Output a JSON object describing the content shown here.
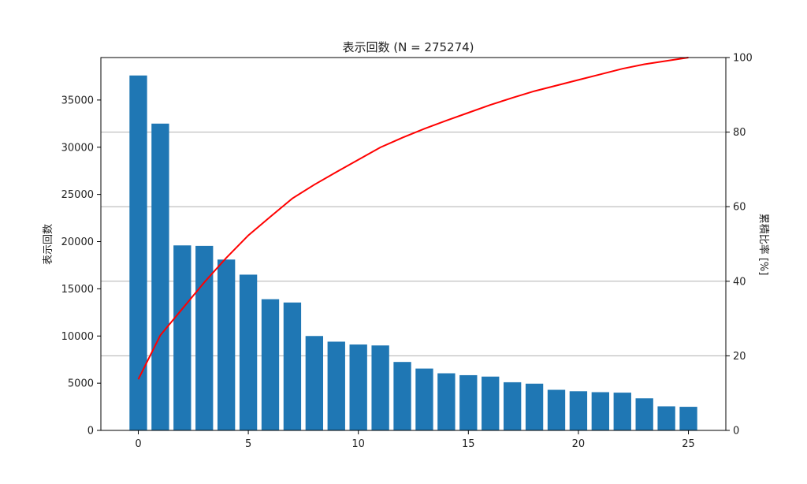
{
  "chart_data": {
    "type": "bar",
    "title": "表示回数 (N = 275274)",
    "ylabel": "表示回数",
    "y2label": "累積比率 [%]",
    "xlim": [
      -1.7,
      26.7
    ],
    "ylim": [
      0,
      39500
    ],
    "y2lim": [
      0,
      100
    ],
    "grid": "horizontal, right axis",
    "x_ticks": [
      0,
      5,
      10,
      15,
      20,
      25
    ],
    "y_ticks": [
      0,
      5000,
      10000,
      15000,
      20000,
      25000,
      30000,
      35000
    ],
    "y2_ticks": [
      0,
      20,
      40,
      60,
      80,
      100
    ],
    "x": [
      0,
      1,
      2,
      3,
      4,
      5,
      6,
      7,
      8,
      9,
      10,
      11,
      12,
      13,
      14,
      15,
      16,
      17,
      18,
      19,
      20,
      21,
      22,
      23,
      24,
      25
    ],
    "series": [
      {
        "type": "bar",
        "color": "#1f77b4",
        "values": [
          37600,
          32500,
          19600,
          19550,
          18100,
          16500,
          13900,
          13550,
          10000,
          9400,
          9100,
          9000,
          7250,
          6550,
          6050,
          5850,
          5700,
          5100,
          4950,
          4300,
          4150,
          4050,
          4000,
          3400,
          2550,
          2500
        ]
      },
      {
        "type": "line",
        "axis": "right",
        "color": "#ff0000",
        "values": [
          13.7,
          25.5,
          32.6,
          39.7,
          46.3,
          52.3,
          57.3,
          62.2,
          65.9,
          69.3,
          72.6,
          75.9,
          78.5,
          80.9,
          83.1,
          85.2,
          87.3,
          89.2,
          91.0,
          92.5,
          94.0,
          95.5,
          97.0,
          98.2,
          99.1,
          100.0
        ]
      }
    ]
  }
}
